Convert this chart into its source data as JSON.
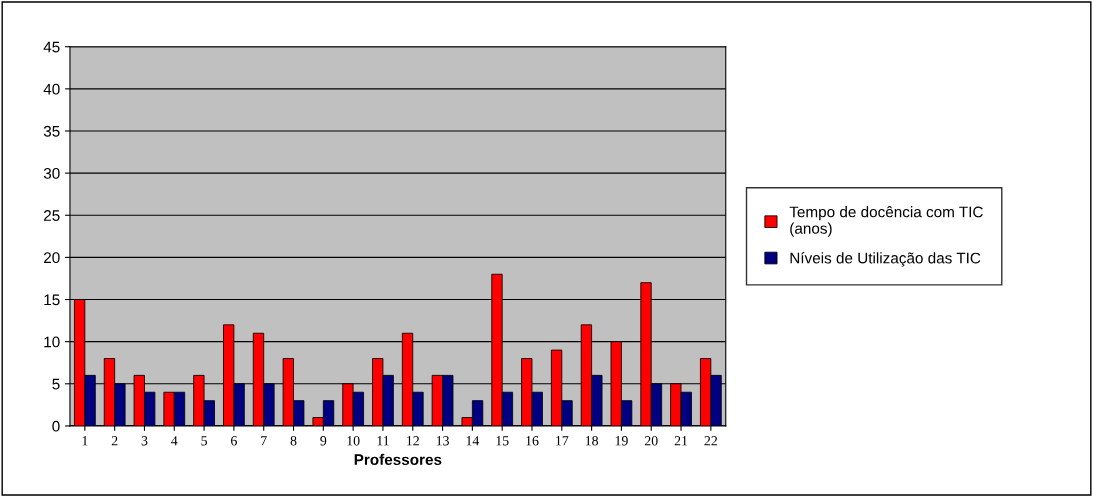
{
  "chart_data": {
    "type": "bar",
    "xlabel": "Professores",
    "categories": [
      "1",
      "2",
      "3",
      "4",
      "5",
      "6",
      "7",
      "8",
      "9",
      "10",
      "11",
      "12",
      "13",
      "14",
      "15",
      "16",
      "17",
      "18",
      "19",
      "20",
      "21",
      "22"
    ],
    "series": [
      {
        "name": "Tempo de docência com TIC\n(anos)",
        "color": "#ff0000",
        "values": [
          15,
          8,
          6,
          4,
          6,
          12,
          11,
          8,
          1,
          5,
          8,
          11,
          6,
          1,
          18,
          8,
          9,
          12,
          10,
          17,
          5,
          8
        ]
      },
      {
        "name": "Níveis de Utilização das TIC",
        "color": "#000080",
        "values": [
          6,
          5,
          4,
          4,
          3,
          5,
          5,
          3,
          3,
          4,
          6,
          4,
          6,
          3,
          4,
          4,
          3,
          6,
          3,
          5,
          4,
          6
        ]
      }
    ],
    "ylim": [
      0,
      45
    ],
    "yticks": [
      0,
      5,
      10,
      15,
      20,
      25,
      30,
      35,
      40,
      45
    ],
    "grid": "y",
    "legend": "right"
  }
}
